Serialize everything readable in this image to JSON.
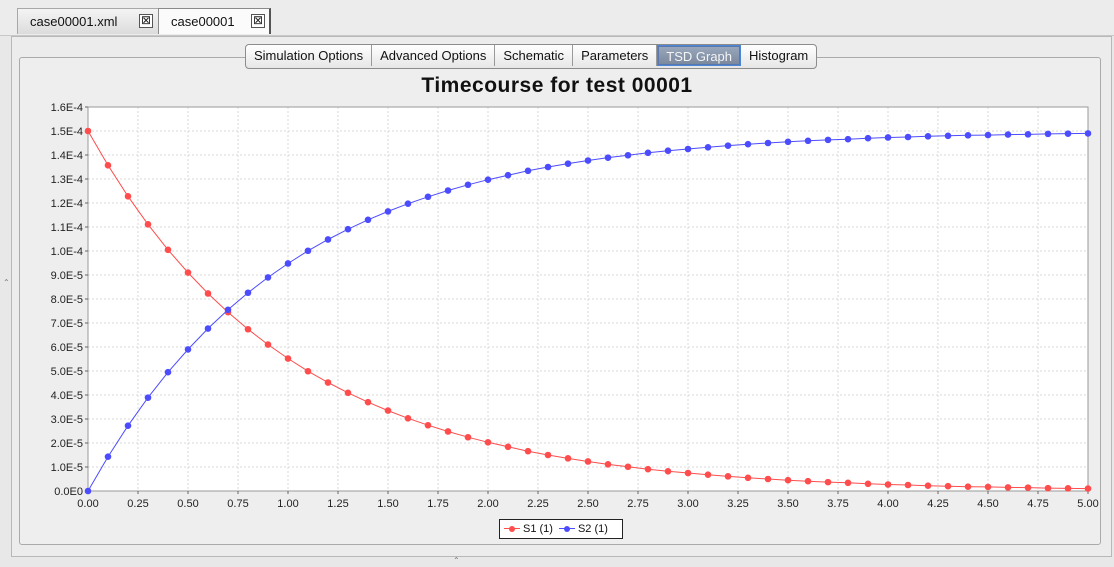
{
  "tabs": [
    {
      "label": "case00001.xml",
      "close": "⊠"
    },
    {
      "label": "case00001",
      "close": "⊠"
    }
  ],
  "subtabs": [
    {
      "label": "Simulation Options"
    },
    {
      "label": "Advanced Options"
    },
    {
      "label": "Schematic"
    },
    {
      "label": "Parameters"
    },
    {
      "label": "TSD Graph"
    },
    {
      "label": "Histogram"
    }
  ],
  "colors": {
    "s1": "#ff4c4c",
    "s2": "#4c4cff"
  },
  "chart_data": {
    "type": "line",
    "title": "Timecourse for test 00001",
    "xlabel": "",
    "ylabel": "",
    "xlim": [
      0,
      5
    ],
    "ylim": [
      0,
      0.00016
    ],
    "x_ticks": [
      "0.00",
      "0.25",
      "0.50",
      "0.75",
      "1.00",
      "1.25",
      "1.50",
      "1.75",
      "2.00",
      "2.25",
      "2.50",
      "2.75",
      "3.00",
      "3.25",
      "3.50",
      "3.75",
      "4.00",
      "4.25",
      "4.50",
      "4.75",
      "5.00"
    ],
    "y_ticks": [
      "0.0E0",
      "1.0E-5",
      "2.0E-5",
      "3.0E-5",
      "4.0E-5",
      "5.0E-5",
      "6.0E-5",
      "7.0E-5",
      "8.0E-5",
      "9.0E-5",
      "1.0E-4",
      "1.1E-4",
      "1.2E-4",
      "1.3E-4",
      "1.4E-4",
      "1.5E-4",
      "1.6E-4"
    ],
    "grid": true,
    "legend_position": "bottom-center",
    "x": [
      0,
      0.1,
      0.2,
      0.3,
      0.4,
      0.5,
      0.6,
      0.7,
      0.8,
      0.9,
      1.0,
      1.1,
      1.2,
      1.3,
      1.4,
      1.5,
      1.6,
      1.7,
      1.8,
      1.9,
      2.0,
      2.1,
      2.2,
      2.3,
      2.4,
      2.5,
      2.6,
      2.7,
      2.8,
      2.9,
      3.0,
      3.1,
      3.2,
      3.3,
      3.4,
      3.5,
      3.6,
      3.7,
      3.8,
      3.9,
      4.0,
      4.1,
      4.2,
      4.3,
      4.4,
      4.5,
      4.6,
      4.7,
      4.8,
      4.9,
      5.0
    ],
    "series": [
      {
        "name": "S1 (1)",
        "color": "#ff4c4c",
        "values": [
          0.00015,
          0.0001357,
          0.0001228,
          0.0001111,
          0.0001005,
          9.1e-05,
          8.23e-05,
          7.45e-05,
          6.74e-05,
          6.1e-05,
          5.52e-05,
          4.99e-05,
          4.52e-05,
          4.09e-05,
          3.7e-05,
          3.35e-05,
          3.03e-05,
          2.74e-05,
          2.48e-05,
          2.24e-05,
          2.03e-05,
          1.84e-05,
          1.66e-05,
          1.5e-05,
          1.36e-05,
          1.23e-05,
          1.11e-05,
          1.01e-05,
          9.1e-06,
          8.2e-06,
          7.5e-06,
          6.8e-06,
          6.1e-06,
          5.5e-06,
          5e-06,
          4.5e-06,
          4.1e-06,
          3.7e-06,
          3.4e-06,
          3e-06,
          2.7e-06,
          2.5e-06,
          2.2e-06,
          2e-06,
          1.8e-06,
          1.7e-06,
          1.5e-06,
          1.4e-06,
          1.2e-06,
          1.1e-06,
          1e-06
        ]
      },
      {
        "name": "S2 (1)",
        "color": "#4c4cff",
        "values": [
          0,
          1.43e-05,
          2.72e-05,
          3.89e-05,
          4.95e-05,
          5.9e-05,
          6.77e-05,
          7.55e-05,
          8.26e-05,
          8.9e-05,
          9.48e-05,
          0.0001001,
          0.0001048,
          0.0001091,
          0.000113,
          0.0001165,
          0.0001197,
          0.0001226,
          0.0001252,
          0.0001276,
          0.0001297,
          0.0001316,
          0.0001334,
          0.000135,
          0.0001364,
          0.0001377,
          0.0001389,
          0.0001399,
          0.0001409,
          0.0001418,
          0.0001425,
          0.0001432,
          0.0001439,
          0.0001445,
          0.000145,
          0.0001455,
          0.0001459,
          0.0001463,
          0.0001466,
          0.000147,
          0.0001473,
          0.0001475,
          0.0001478,
          0.000148,
          0.0001482,
          0.0001483,
          0.0001485,
          0.0001486,
          0.0001488,
          0.0001489,
          0.000149
        ]
      }
    ]
  }
}
